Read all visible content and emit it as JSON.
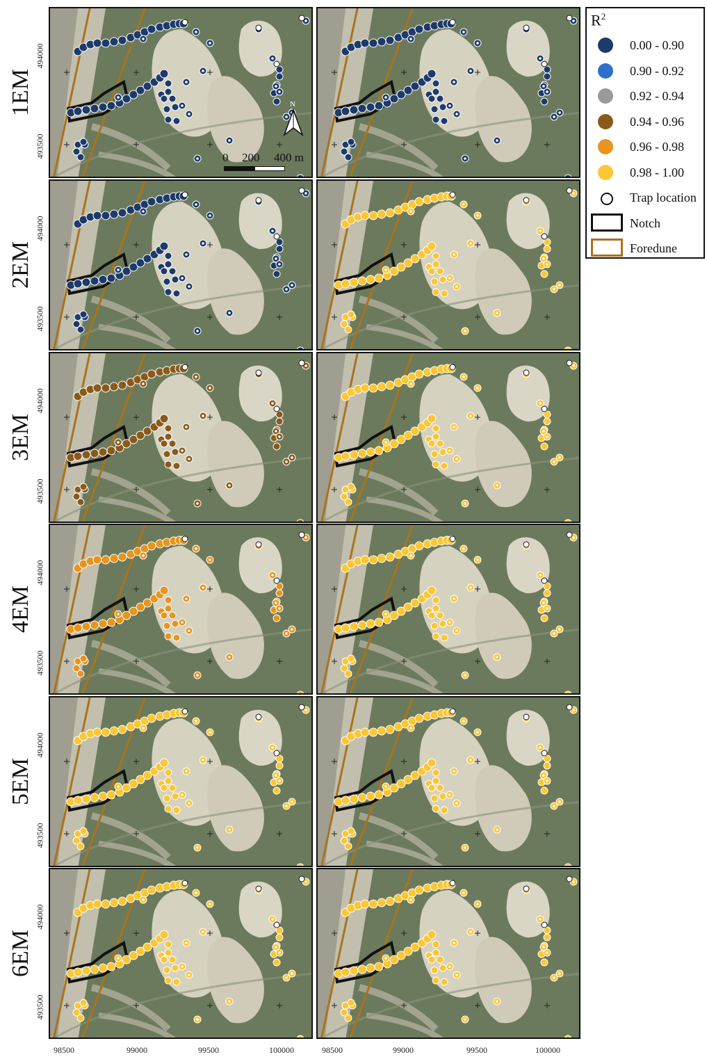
{
  "rows": [
    "1EM",
    "2EM",
    "3EM",
    "4EM",
    "5EM",
    "6EM"
  ],
  "x_ticks": [
    "98500",
    "99000",
    "99500",
    "100000"
  ],
  "y_ticks": [
    "494000",
    "493500"
  ],
  "scale_bar": {
    "labels": [
      "0",
      "200",
      "400 m"
    ]
  },
  "north_label": "N",
  "legend": {
    "title": "R",
    "title_sup": "2",
    "classes": [
      {
        "label": "0.00 - 0.90",
        "color": "#1d3a6b"
      },
      {
        "label": "0.90 - 0.92",
        "color": "#2f6fcc"
      },
      {
        "label": "0.92 - 0.94",
        "color": "#9a9a9a"
      },
      {
        "label": "0.94 - 0.96",
        "color": "#8a5a1a"
      },
      {
        "label": "0.96 - 0.98",
        "color": "#e8941e"
      },
      {
        "label": "0.98 - 1.00",
        "color": "#fcc634"
      }
    ],
    "trap_label": "Trap location",
    "notch_label": "Notch",
    "foredune_label": "Foredune",
    "notch_color": "#111111",
    "foredune_color": "#a8741e"
  },
  "panels_class_pattern": [
    [
      0,
      0
    ],
    [
      0,
      5
    ],
    [
      3,
      5
    ],
    [
      4,
      5
    ],
    [
      5,
      5
    ],
    [
      5,
      5
    ]
  ]
}
